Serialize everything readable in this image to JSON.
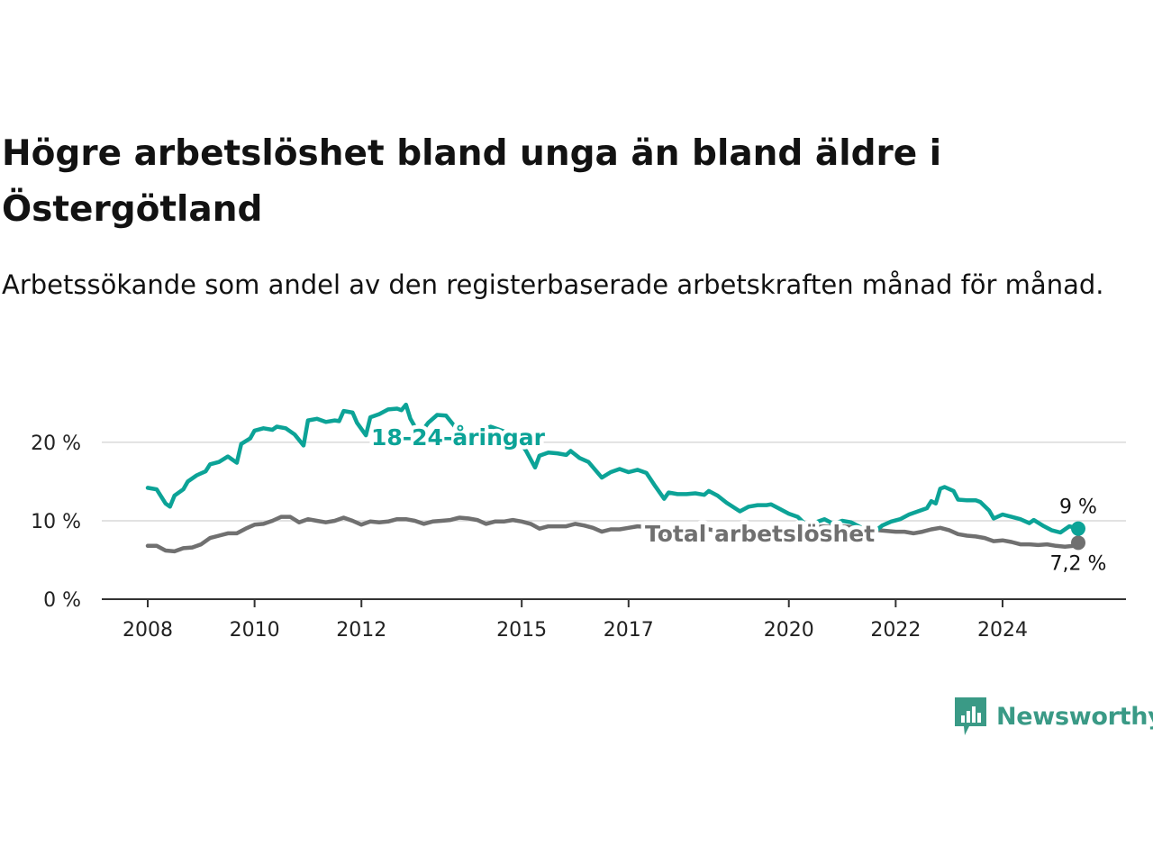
{
  "title": "Högre arbetslöshet bland unga än bland äldre i Östergötland",
  "subtitle": "Arbetssökande som andel av den registerbaserade arbetskraften månad för månad.",
  "brand": {
    "name": "Newsworthy",
    "icon": "newsworthy-logo-icon",
    "color": "#3a9a86"
  },
  "colors": {
    "youth": "#0ca397",
    "total": "#707070"
  },
  "chart_data": {
    "type": "line",
    "title": "Högre arbetslöshet bland unga än bland äldre i Östergötland",
    "subtitle": "Arbetssökande som andel av den registerbaserade arbetskraften månad för månad.",
    "xlabel": "",
    "ylabel": "",
    "ylim": [
      0,
      27
    ],
    "xlim": [
      "2008-01",
      "2025-06"
    ],
    "x_ticks": [
      "2008",
      "2010",
      "2012",
      "2015",
      "2017",
      "2020",
      "2022",
      "2024"
    ],
    "y_ticks": [
      {
        "value": 0,
        "label": "0 %"
      },
      {
        "value": 10,
        "label": "10 %"
      },
      {
        "value": 20,
        "label": "20 %"
      }
    ],
    "grid": true,
    "legend": "inline labels",
    "series": [
      {
        "name": "18-24-åringar",
        "color": "#0ca397",
        "end_label": "9 %",
        "points": [
          [
            "2008-01",
            14.2
          ],
          [
            "2008-03",
            14.0
          ],
          [
            "2008-05",
            12.2
          ],
          [
            "2008-06",
            11.8
          ],
          [
            "2008-07",
            13.2
          ],
          [
            "2008-09",
            14.0
          ],
          [
            "2008-10",
            15.0
          ],
          [
            "2008-12",
            15.8
          ],
          [
            "2009-02",
            16.3
          ],
          [
            "2009-03",
            17.2
          ],
          [
            "2009-05",
            17.5
          ],
          [
            "2009-07",
            18.2
          ],
          [
            "2009-09",
            17.4
          ],
          [
            "2009-10",
            19.8
          ],
          [
            "2009-12",
            20.5
          ],
          [
            "2010-01",
            21.5
          ],
          [
            "2010-03",
            21.8
          ],
          [
            "2010-05",
            21.6
          ],
          [
            "2010-06",
            22.0
          ],
          [
            "2010-08",
            21.8
          ],
          [
            "2010-10",
            21.0
          ],
          [
            "2010-12",
            19.6
          ],
          [
            "2011-01",
            22.8
          ],
          [
            "2011-03",
            23.0
          ],
          [
            "2011-05",
            22.6
          ],
          [
            "2011-07",
            22.8
          ],
          [
            "2011-08",
            22.7
          ],
          [
            "2011-09",
            24.0
          ],
          [
            "2011-11",
            23.8
          ],
          [
            "2011-12",
            22.5
          ],
          [
            "2012-02",
            20.9
          ],
          [
            "2012-03",
            23.2
          ],
          [
            "2012-05",
            23.6
          ],
          [
            "2012-07",
            24.2
          ],
          [
            "2012-09",
            24.3
          ],
          [
            "2012-10",
            24.1
          ],
          [
            "2012-11",
            24.8
          ],
          [
            "2012-12",
            23.0
          ],
          [
            "2013-02",
            21.0
          ],
          [
            "2013-04",
            22.5
          ],
          [
            "2013-06",
            23.5
          ],
          [
            "2013-08",
            23.4
          ],
          [
            "2013-10",
            22.0
          ],
          [
            "2013-12",
            20.8
          ],
          [
            "2014-02",
            19.6
          ],
          [
            "2014-04",
            21.5
          ],
          [
            "2014-06",
            22.0
          ],
          [
            "2014-08",
            21.6
          ],
          [
            "2014-10",
            21.2
          ],
          [
            "2014-12",
            20.5
          ],
          [
            "2015-02",
            18.9
          ],
          [
            "2015-04",
            16.8
          ],
          [
            "2015-05",
            18.3
          ],
          [
            "2015-07",
            18.7
          ],
          [
            "2015-09",
            18.6
          ],
          [
            "2015-11",
            18.4
          ],
          [
            "2015-12",
            18.9
          ],
          [
            "2016-02",
            18.0
          ],
          [
            "2016-04",
            17.5
          ],
          [
            "2016-07",
            15.5
          ],
          [
            "2016-09",
            16.2
          ],
          [
            "2016-11",
            16.6
          ],
          [
            "2017-01",
            16.2
          ],
          [
            "2017-03",
            16.5
          ],
          [
            "2017-05",
            16.1
          ],
          [
            "2017-07",
            14.4
          ],
          [
            "2017-09",
            12.8
          ],
          [
            "2017-10",
            13.6
          ],
          [
            "2017-12",
            13.4
          ],
          [
            "2018-02",
            13.4
          ],
          [
            "2018-04",
            13.5
          ],
          [
            "2018-06",
            13.3
          ],
          [
            "2018-07",
            13.8
          ],
          [
            "2018-09",
            13.2
          ],
          [
            "2018-11",
            12.3
          ],
          [
            "2019-02",
            11.2
          ],
          [
            "2019-04",
            11.8
          ],
          [
            "2019-06",
            12.0
          ],
          [
            "2019-08",
            12.0
          ],
          [
            "2019-09",
            12.1
          ],
          [
            "2019-11",
            11.5
          ],
          [
            "2020-01",
            10.9
          ],
          [
            "2020-03",
            10.5
          ],
          [
            "2020-05",
            9.4
          ],
          [
            "2020-07",
            9.8
          ],
          [
            "2020-09",
            10.2
          ],
          [
            "2020-11",
            9.6
          ],
          [
            "2021-01",
            10.0
          ],
          [
            "2021-03",
            9.8
          ],
          [
            "2021-05",
            9.2
          ],
          [
            "2021-06",
            8.6
          ],
          [
            "2021-08",
            8.5
          ],
          [
            "2021-10",
            9.4
          ],
          [
            "2021-12",
            9.9
          ],
          [
            "2022-02",
            10.2
          ],
          [
            "2022-04",
            10.8
          ],
          [
            "2022-06",
            11.2
          ],
          [
            "2022-08",
            11.6
          ],
          [
            "2022-09",
            12.5
          ],
          [
            "2022-10",
            12.2
          ],
          [
            "2022-11",
            14.1
          ],
          [
            "2022-12",
            14.3
          ],
          [
            "2023-02",
            13.8
          ],
          [
            "2023-03",
            12.7
          ],
          [
            "2023-05",
            12.6
          ],
          [
            "2023-07",
            12.6
          ],
          [
            "2023-08",
            12.4
          ],
          [
            "2023-10",
            11.3
          ],
          [
            "2023-11",
            10.3
          ],
          [
            "2024-01",
            10.8
          ],
          [
            "2024-03",
            10.5
          ],
          [
            "2024-05",
            10.2
          ],
          [
            "2024-07",
            9.7
          ],
          [
            "2024-08",
            10.1
          ],
          [
            "2024-10",
            9.4
          ],
          [
            "2024-12",
            8.8
          ],
          [
            "2025-02",
            8.5
          ],
          [
            "2025-04",
            9.3
          ],
          [
            "2025-06",
            9.0
          ]
        ]
      },
      {
        "name": "Total arbetslöshet",
        "color": "#707070",
        "end_label": "7,2 %",
        "points": [
          [
            "2008-01",
            6.8
          ],
          [
            "2008-03",
            6.8
          ],
          [
            "2008-05",
            6.2
          ],
          [
            "2008-07",
            6.1
          ],
          [
            "2008-09",
            6.5
          ],
          [
            "2008-11",
            6.6
          ],
          [
            "2009-01",
            7.0
          ],
          [
            "2009-03",
            7.8
          ],
          [
            "2009-05",
            8.1
          ],
          [
            "2009-07",
            8.4
          ],
          [
            "2009-09",
            8.4
          ],
          [
            "2009-11",
            9.0
          ],
          [
            "2010-01",
            9.5
          ],
          [
            "2010-03",
            9.6
          ],
          [
            "2010-05",
            10.0
          ],
          [
            "2010-07",
            10.5
          ],
          [
            "2010-09",
            10.5
          ],
          [
            "2010-11",
            9.8
          ],
          [
            "2011-01",
            10.2
          ],
          [
            "2011-03",
            10.0
          ],
          [
            "2011-05",
            9.8
          ],
          [
            "2011-07",
            10.0
          ],
          [
            "2011-09",
            10.4
          ],
          [
            "2011-11",
            10.0
          ],
          [
            "2012-01",
            9.5
          ],
          [
            "2012-03",
            9.9
          ],
          [
            "2012-05",
            9.8
          ],
          [
            "2012-07",
            9.9
          ],
          [
            "2012-09",
            10.2
          ],
          [
            "2012-11",
            10.2
          ],
          [
            "2013-01",
            10.0
          ],
          [
            "2013-03",
            9.6
          ],
          [
            "2013-05",
            9.9
          ],
          [
            "2013-07",
            10.0
          ],
          [
            "2013-09",
            10.1
          ],
          [
            "2013-11",
            10.4
          ],
          [
            "2014-01",
            10.3
          ],
          [
            "2014-03",
            10.1
          ],
          [
            "2014-05",
            9.6
          ],
          [
            "2014-07",
            9.9
          ],
          [
            "2014-09",
            9.9
          ],
          [
            "2014-11",
            10.1
          ],
          [
            "2015-01",
            9.9
          ],
          [
            "2015-03",
            9.6
          ],
          [
            "2015-05",
            9.0
          ],
          [
            "2015-07",
            9.3
          ],
          [
            "2015-09",
            9.3
          ],
          [
            "2015-11",
            9.3
          ],
          [
            "2016-01",
            9.6
          ],
          [
            "2016-03",
            9.4
          ],
          [
            "2016-05",
            9.1
          ],
          [
            "2016-07",
            8.6
          ],
          [
            "2016-09",
            8.9
          ],
          [
            "2016-11",
            8.9
          ],
          [
            "2017-01",
            9.1
          ],
          [
            "2017-03",
            9.3
          ],
          [
            "2017-05",
            9.2
          ],
          [
            "2017-07",
            8.6
          ],
          [
            "2017-09",
            8.3
          ],
          [
            "2017-11",
            8.4
          ],
          [
            "2018-01",
            8.6
          ],
          [
            "2018-03",
            8.7
          ],
          [
            "2018-05",
            9.0
          ],
          [
            "2018-07",
            8.9
          ],
          [
            "2018-09",
            8.7
          ],
          [
            "2018-11",
            8.5
          ],
          [
            "2019-01",
            8.3
          ],
          [
            "2019-03",
            8.4
          ],
          [
            "2019-05",
            8.4
          ],
          [
            "2019-07",
            8.5
          ],
          [
            "2019-09",
            8.6
          ],
          [
            "2019-11",
            8.5
          ],
          [
            "2020-01",
            8.7
          ],
          [
            "2020-03",
            8.9
          ],
          [
            "2020-05",
            9.1
          ],
          [
            "2020-07",
            9.2
          ],
          [
            "2020-09",
            9.3
          ],
          [
            "2020-11",
            9.2
          ],
          [
            "2021-01",
            9.3
          ],
          [
            "2021-03",
            9.2
          ],
          [
            "2021-05",
            8.9
          ],
          [
            "2021-07",
            8.9
          ],
          [
            "2021-09",
            8.8
          ],
          [
            "2021-11",
            8.7
          ],
          [
            "2022-01",
            8.6
          ],
          [
            "2022-03",
            8.6
          ],
          [
            "2022-05",
            8.4
          ],
          [
            "2022-07",
            8.6
          ],
          [
            "2022-09",
            8.9
          ],
          [
            "2022-11",
            9.1
          ],
          [
            "2023-01",
            8.8
          ],
          [
            "2023-03",
            8.3
          ],
          [
            "2023-05",
            8.1
          ],
          [
            "2023-07",
            8.0
          ],
          [
            "2023-09",
            7.8
          ],
          [
            "2023-11",
            7.4
          ],
          [
            "2024-01",
            7.5
          ],
          [
            "2024-03",
            7.3
          ],
          [
            "2024-05",
            7.0
          ],
          [
            "2024-07",
            7.0
          ],
          [
            "2024-09",
            6.9
          ],
          [
            "2024-11",
            7.0
          ],
          [
            "2025-01",
            6.8
          ],
          [
            "2025-03",
            6.7
          ],
          [
            "2025-05",
            6.8
          ],
          [
            "2025-06",
            7.2
          ]
        ]
      }
    ]
  }
}
